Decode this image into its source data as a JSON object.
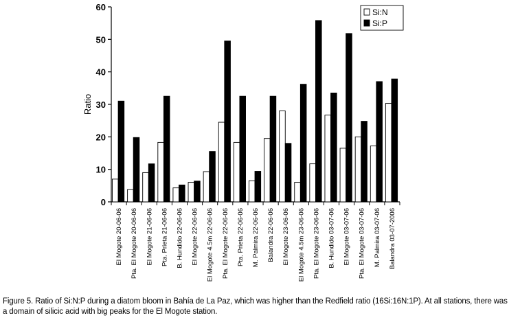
{
  "chart_data": {
    "type": "bar",
    "title": "",
    "xlabel": "",
    "ylabel": "Ratio",
    "ylim": [
      0,
      60
    ],
    "yticks": [
      0,
      10,
      20,
      30,
      40,
      50,
      60
    ],
    "legend_position": "top-right",
    "categories": [
      "El Mogote 20-06-06",
      "Pta. El Mogote 20-06-06",
      "El Mogote 21-06-06",
      "Pta. Prieta 21-06-06",
      "B. Hundido 22-06-06",
      "El Mogote 22-06-06",
      "El Mogote 4.5m 22-06-06",
      "Pta. El Mogote 22-06-06",
      "Pta. Prieta 22-06-06",
      "M. Palmira 22-06-06",
      "Balandra 22-06-06",
      "El Mogote 23-06-06",
      "El Mogote 4.5m 23-06-06",
      "Pta. El Mogote 23-06-06",
      "B. Hundido 03-07-06",
      "El Mogote 03-07-06",
      "Pta. El Mogote 03-07-06",
      "M. Palmira 03-07-06",
      "Balandra 03-07-2006"
    ],
    "series": [
      {
        "name": "Si:N",
        "color": "#ffffff",
        "values": [
          7,
          3.8,
          9,
          18.3,
          4.3,
          6,
          9.3,
          24.5,
          18.3,
          6.5,
          19.5,
          28,
          6,
          11.7,
          26.7,
          16.5,
          20,
          17.2,
          30.3
        ]
      },
      {
        "name": "Si:P",
        "color": "#000000",
        "values": [
          31,
          19.8,
          11.7,
          32.5,
          5.2,
          6.4,
          15.5,
          49.5,
          32.5,
          9.4,
          32.5,
          18,
          36.2,
          55.8,
          33.5,
          51.8,
          24.8,
          37,
          37.8
        ]
      }
    ]
  },
  "caption": "Figure 5. Ratio of Si:N:P during a diatom bloom in Bahía de La Paz, which was higher than the Redfield ratio (16Si:16N:1P). At all stations, there was a domain of silicic acid with big peaks for the El Mogote station."
}
